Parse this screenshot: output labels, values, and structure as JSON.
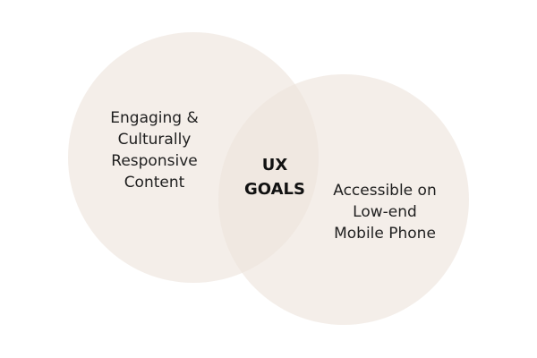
{
  "colors": {
    "circle_fill": "#ede4db",
    "text": "#1f1f1f"
  },
  "circles": {
    "left": {
      "lines": [
        "Engaging &",
        "Culturally",
        "Responsive",
        "Content"
      ]
    },
    "right": {
      "lines": [
        "Accessible on",
        "Low-end",
        "Mobile Phone"
      ]
    },
    "center": {
      "lines": [
        "UX",
        "GOALS"
      ]
    }
  }
}
